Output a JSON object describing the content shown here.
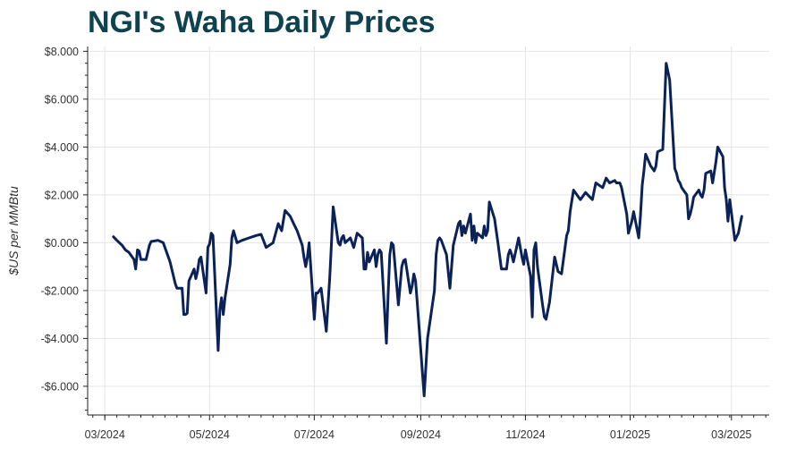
{
  "chart_data": {
    "type": "line",
    "title": "NGI's Waha Daily Prices",
    "xlabel": "",
    "ylabel": "$US per MMBtu",
    "grid": true,
    "legend": "none",
    "colors": {
      "line": "#0b2259",
      "grid": "#e5e5e5",
      "axis": "#222222",
      "title": "#0f4250"
    },
    "xlim": [
      "2024-02-20",
      "2025-03-23"
    ],
    "ylim": [
      -7.2,
      8.2
    ],
    "x_ticks": [
      "2024-03-01",
      "2024-05-01",
      "2024-07-01",
      "2024-09-01",
      "2024-11-01",
      "2025-01-01",
      "2025-03-01"
    ],
    "x_tick_labels": [
      "03/2024",
      "05/2024",
      "07/2024",
      "09/2024",
      "11/2024",
      "01/2025",
      "03/2025"
    ],
    "y_ticks": [
      -6,
      -4,
      -2,
      0,
      2,
      4,
      6,
      8
    ],
    "y_tick_labels": [
      "-$6.000",
      "-$4.000",
      "-$2.000",
      "$0.000",
      "$2.000",
      "$4.000",
      "$6.000",
      "$8.000"
    ],
    "series": [
      {
        "x": [
          "2024-03-06",
          "2024-03-08",
          "2024-03-11",
          "2024-03-13",
          "2024-03-15",
          "2024-03-18",
          "2024-03-19",
          "2024-03-20",
          "2024-03-21",
          "2024-03-22",
          "2024-03-25",
          "2024-03-27",
          "2024-03-28",
          "2024-04-01",
          "2024-04-04",
          "2024-04-08",
          "2024-04-11",
          "2024-04-12",
          "2024-04-15",
          "2024-04-16",
          "2024-04-17",
          "2024-04-18",
          "2024-04-19",
          "2024-04-22",
          "2024-04-23",
          "2024-04-24",
          "2024-04-25",
          "2024-04-26",
          "2024-04-29",
          "2024-04-30",
          "2024-05-01",
          "2024-05-02",
          "2024-05-03",
          "2024-05-06",
          "2024-05-07",
          "2024-05-08",
          "2024-05-09",
          "2024-05-10",
          "2024-05-13",
          "2024-05-14",
          "2024-05-15",
          "2024-05-17",
          "2024-05-20",
          "2024-05-24",
          "2024-05-28",
          "2024-05-31",
          "2024-06-03",
          "2024-06-07",
          "2024-06-10",
          "2024-06-12",
          "2024-06-14",
          "2024-06-17",
          "2024-06-19",
          "2024-06-21",
          "2024-06-24",
          "2024-06-25",
          "2024-06-26",
          "2024-06-27",
          "2024-06-28",
          "2024-07-01",
          "2024-07-02",
          "2024-07-03",
          "2024-07-05",
          "2024-07-08",
          "2024-07-10",
          "2024-07-11",
          "2024-07-12",
          "2024-07-15",
          "2024-07-16",
          "2024-07-17",
          "2024-07-18",
          "2024-07-19",
          "2024-07-22",
          "2024-07-24",
          "2024-07-26",
          "2024-07-29",
          "2024-07-30",
          "2024-07-31",
          "2024-08-01",
          "2024-08-02",
          "2024-08-05",
          "2024-08-06",
          "2024-08-07",
          "2024-08-08",
          "2024-08-09",
          "2024-08-12",
          "2024-08-13",
          "2024-08-14",
          "2024-08-15",
          "2024-08-16",
          "2024-08-19",
          "2024-08-20",
          "2024-08-21",
          "2024-08-22",
          "2024-08-23",
          "2024-08-26",
          "2024-08-27",
          "2024-08-28",
          "2024-08-29",
          "2024-08-30",
          "2024-09-03",
          "2024-09-05",
          "2024-09-09",
          "2024-09-10",
          "2024-09-11",
          "2024-09-12",
          "2024-09-13",
          "2024-09-16",
          "2024-09-18",
          "2024-09-20",
          "2024-09-23",
          "2024-09-24",
          "2024-09-25",
          "2024-09-26",
          "2024-09-27",
          "2024-09-30",
          "2024-10-01",
          "2024-10-02",
          "2024-10-03",
          "2024-10-04",
          "2024-10-07",
          "2024-10-08",
          "2024-10-09",
          "2024-10-10",
          "2024-10-11",
          "2024-10-14",
          "2024-10-16",
          "2024-10-18",
          "2024-10-21",
          "2024-10-22",
          "2024-10-23",
          "2024-10-24",
          "2024-10-25",
          "2024-10-28",
          "2024-10-29",
          "2024-10-30",
          "2024-10-31",
          "2024-11-01",
          "2024-11-04",
          "2024-11-05",
          "2024-11-06",
          "2024-11-07",
          "2024-11-08",
          "2024-11-11",
          "2024-11-12",
          "2024-11-13",
          "2024-11-15",
          "2024-11-18",
          "2024-11-20",
          "2024-11-22",
          "2024-11-25",
          "2024-11-26",
          "2024-11-27",
          "2024-11-29",
          "2024-12-03",
          "2024-12-06",
          "2024-12-10",
          "2024-12-12",
          "2024-12-16",
          "2024-12-18",
          "2024-12-20",
          "2024-12-23",
          "2024-12-24",
          "2024-12-26",
          "2024-12-27",
          "2024-12-30",
          "2024-12-31",
          "2025-01-02",
          "2025-01-03",
          "2025-01-06",
          "2025-01-07",
          "2025-01-08",
          "2025-01-09",
          "2025-01-10",
          "2025-01-13",
          "2025-01-14",
          "2025-01-15",
          "2025-01-16",
          "2025-01-17",
          "2025-01-20",
          "2025-01-22",
          "2025-01-24",
          "2025-01-27",
          "2025-01-28",
          "2025-01-29",
          "2025-01-30",
          "2025-01-31",
          "2025-02-03",
          "2025-02-04",
          "2025-02-05",
          "2025-02-06",
          "2025-02-07",
          "2025-02-10",
          "2025-02-11",
          "2025-02-12",
          "2025-02-13",
          "2025-02-14",
          "2025-02-17",
          "2025-02-18",
          "2025-02-20",
          "2025-02-21",
          "2025-02-24",
          "2025-02-25",
          "2025-02-26",
          "2025-02-27",
          "2025-02-28",
          "2025-03-03",
          "2025-03-05",
          "2025-03-07"
        ],
        "values": [
          0.25,
          0.1,
          -0.1,
          -0.3,
          -0.4,
          -0.7,
          -1.1,
          -0.3,
          -0.35,
          -0.7,
          -0.7,
          -0.1,
          0.05,
          0.1,
          0.0,
          -0.8,
          -1.7,
          -1.9,
          -1.9,
          -3.0,
          -3.0,
          -2.95,
          -1.6,
          -1.1,
          -1.5,
          -1.2,
          -0.7,
          -0.6,
          -2.1,
          -0.2,
          -0.05,
          0.4,
          0.3,
          -4.5,
          -2.8,
          -2.3,
          -3.0,
          -2.3,
          -0.9,
          0.2,
          0.5,
          0.0,
          0.1,
          0.2,
          0.3,
          0.35,
          -0.2,
          0.0,
          0.8,
          0.5,
          1.35,
          1.1,
          0.8,
          0.5,
          -0.1,
          -0.6,
          -1.0,
          -0.6,
          0.0,
          -3.2,
          -2.1,
          -2.1,
          -1.9,
          -3.7,
          -1.5,
          0.0,
          1.5,
          0.0,
          -0.1,
          0.2,
          0.3,
          0.0,
          0.2,
          -0.2,
          0.4,
          0.2,
          -1.1,
          -1.1,
          -0.4,
          -0.8,
          -0.3,
          -1.0,
          -0.5,
          -0.3,
          -0.4,
          -4.2,
          -2.2,
          -0.5,
          0.0,
          -0.1,
          -2.6,
          -1.8,
          -1.0,
          -0.75,
          -0.7,
          -2.1,
          -1.8,
          -1.3,
          -1.6,
          -2.5,
          -6.4,
          -4.0,
          -2.0,
          -0.5,
          0.1,
          0.2,
          0.1,
          -0.5,
          -1.9,
          -0.1,
          0.8,
          0.9,
          0.3,
          0.7,
          0.4,
          1.2,
          0.1,
          0.7,
          0.0,
          0.4,
          0.2,
          0.7,
          0.3,
          0.5,
          1.7,
          1.0,
          0.0,
          -1.1,
          -1.1,
          -0.5,
          -0.3,
          -0.5,
          -0.8,
          0.2,
          -0.2,
          -0.6,
          -0.9,
          -0.3,
          -1.4,
          -3.1,
          -0.3,
          0.0,
          -1.0,
          -2.6,
          -3.1,
          -3.2,
          -2.5,
          -0.6,
          -1.2,
          -1.3,
          0.3,
          0.5,
          1.3,
          2.2,
          1.8,
          2.1,
          1.8,
          2.5,
          2.3,
          2.7,
          2.5,
          2.6,
          2.5,
          2.5,
          2.3,
          1.2,
          0.4,
          0.9,
          1.3,
          0.2,
          1.1,
          2.4,
          3.0,
          3.7,
          3.2,
          3.1,
          3.0,
          3.2,
          3.8,
          3.9,
          7.5,
          6.8,
          3.1,
          2.9,
          2.6,
          2.5,
          2.3,
          2.0,
          1.0,
          1.2,
          1.5,
          1.9,
          2.2,
          2.0,
          1.9,
          2.2,
          2.9,
          3.0,
          2.5,
          3.4,
          4.0,
          3.6,
          2.3,
          1.8,
          0.9,
          1.8,
          0.1,
          0.4,
          1.1
        ]
      }
    ]
  }
}
